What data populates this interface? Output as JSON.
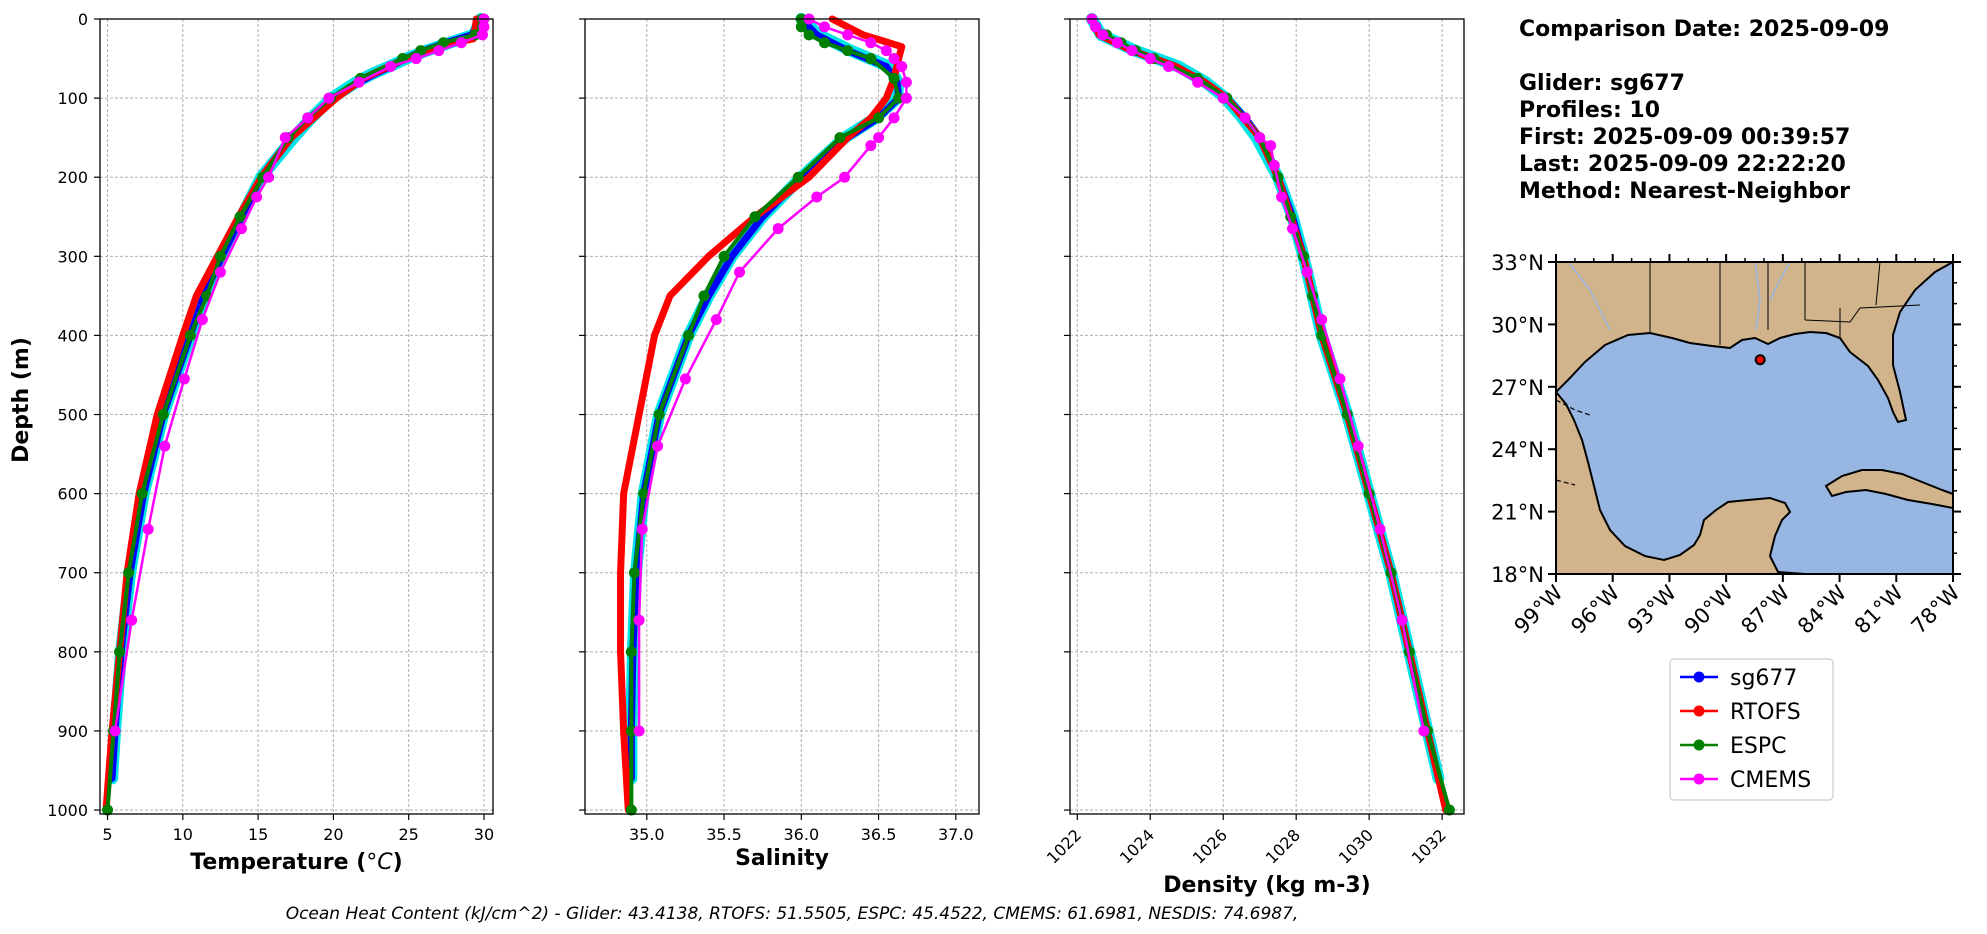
{
  "colors": {
    "glider": "#0000ff",
    "glider_raw": "#00e5e5",
    "rtofs": "#ff0000",
    "espc": "#008000",
    "cmems": "#ff00ff",
    "land": "#d2b48c",
    "ocean": "#98b6e2",
    "grid": "#b0b0b0"
  },
  "info": {
    "comparison_date": "Comparison Date: 2025-09-09",
    "glider": "Glider: sg677",
    "profiles": "Profiles: 10",
    "first": "First: 2025-09-09 00:39:57",
    "last": "Last: 2025-09-09 22:22:20",
    "method": "Method: Nearest-Neighbor"
  },
  "footer": "Ocean Heat Content (kJ/cm^2) - Glider: 43.4138,  RTOFS: 51.5505,  ESPC: 45.4522,  CMEMS: 61.6981,  NESDIS: 74.6987,",
  "legend": [
    {
      "label": "sg677",
      "color_key": "glider"
    },
    {
      "label": "RTOFS",
      "color_key": "rtofs"
    },
    {
      "label": "ESPC",
      "color_key": "espc"
    },
    {
      "label": "CMEMS",
      "color_key": "cmems"
    }
  ],
  "map": {
    "lat_ticks": [
      "33°N",
      "30°N",
      "27°N",
      "24°N",
      "21°N",
      "18°N"
    ],
    "lon_ticks": [
      "99°W",
      "96°W",
      "93°W",
      "90°W",
      "87°W",
      "84°W",
      "81°W",
      "78°W"
    ],
    "extent": {
      "lon": [
        -99,
        -78
      ],
      "lat": [
        18,
        33
      ]
    },
    "glider_position": {
      "lon": -88.2,
      "lat": 28.3
    }
  },
  "chart_data": [
    {
      "type": "line",
      "title": "",
      "xlabel": "Temperature (°C)",
      "ylabel": "Depth (m)",
      "xlim": [
        4.5,
        30.6
      ],
      "ylim": [
        1005,
        0
      ],
      "xticks": [
        5,
        10,
        15,
        20,
        25,
        30
      ],
      "yticks": [
        0,
        100,
        200,
        300,
        400,
        500,
        600,
        700,
        800,
        900,
        1000
      ],
      "grid": true,
      "series": [
        {
          "name": "sg677",
          "color_key": "glider",
          "markers": false,
          "depth": [
            0,
            20,
            30,
            40,
            50,
            60,
            70,
            80,
            100,
            125,
            150,
            200,
            250,
            300,
            350,
            400,
            500,
            600,
            700,
            800,
            900,
            960
          ],
          "values": [
            29.8,
            29.2,
            27.5,
            26.0,
            24.8,
            23.8,
            22.7,
            21.7,
            20.0,
            18.5,
            17.2,
            15.2,
            13.9,
            12.6,
            11.4,
            10.5,
            8.7,
            7.4,
            6.5,
            5.9,
            5.5,
            5.3
          ]
        },
        {
          "name": "RTOFS",
          "color_key": "rtofs",
          "markers": false,
          "depth": [
            0,
            25,
            30,
            40,
            50,
            75,
            100,
            150,
            200,
            250,
            300,
            350,
            400,
            500,
            600,
            700,
            800,
            900,
            1000
          ],
          "values": [
            29.5,
            29.3,
            28.0,
            26.3,
            24.8,
            22.0,
            20.2,
            17.2,
            15.2,
            13.7,
            12.3,
            10.9,
            10.0,
            8.3,
            7.1,
            6.3,
            5.8,
            5.3,
            4.9
          ]
        },
        {
          "name": "ESPC",
          "color_key": "espc",
          "markers": true,
          "depth": [
            0,
            10,
            20,
            30,
            40,
            50,
            75,
            100,
            125,
            150,
            200,
            250,
            300,
            350,
            400,
            500,
            600,
            700,
            800,
            900,
            1000
          ],
          "values": [
            29.9,
            29.9,
            29.4,
            27.3,
            25.8,
            24.6,
            21.8,
            19.8,
            18.3,
            17.0,
            15.3,
            13.8,
            12.5,
            11.6,
            10.5,
            8.7,
            7.3,
            6.4,
            5.8,
            5.4,
            5.0
          ]
        },
        {
          "name": "CMEMS",
          "color_key": "cmems",
          "markers": true,
          "depth": [
            0,
            10,
            20,
            30,
            40,
            50,
            60,
            80,
            100,
            125,
            150,
            200,
            225,
            265,
            320,
            380,
            455,
            540,
            645,
            760,
            900
          ],
          "values": [
            30.0,
            30.0,
            29.9,
            28.5,
            27.0,
            25.5,
            23.8,
            21.7,
            19.7,
            18.3,
            16.8,
            15.7,
            14.9,
            13.9,
            12.5,
            11.3,
            10.1,
            8.8,
            7.7,
            6.6,
            5.5
          ]
        }
      ]
    },
    {
      "type": "line",
      "title": "",
      "xlabel": "Salinity",
      "ylabel": "",
      "xlim": [
        34.6,
        37.15
      ],
      "ylim": [
        1005,
        0
      ],
      "xticks": [
        35.0,
        35.5,
        36.0,
        36.5,
        37.0
      ],
      "yticks": [
        0,
        100,
        200,
        300,
        400,
        500,
        600,
        700,
        800,
        900,
        1000
      ],
      "grid": true,
      "series": [
        {
          "name": "sg677",
          "color_key": "glider",
          "markers": false,
          "depth": [
            0,
            20,
            40,
            60,
            80,
            100,
            125,
            150,
            200,
            250,
            300,
            350,
            400,
            500,
            600,
            700,
            800,
            900,
            960
          ],
          "values": [
            36.0,
            36.1,
            36.3,
            36.55,
            36.62,
            36.63,
            36.5,
            36.3,
            36.0,
            35.75,
            35.55,
            35.4,
            35.27,
            35.08,
            34.98,
            34.93,
            34.91,
            34.9,
            34.9
          ]
        },
        {
          "name": "RTOFS",
          "color_key": "rtofs",
          "markers": false,
          "depth": [
            0,
            20,
            35,
            50,
            75,
            100,
            125,
            150,
            200,
            250,
            300,
            350,
            400,
            500,
            600,
            700,
            800,
            900,
            1000
          ],
          "values": [
            36.2,
            36.4,
            36.65,
            36.63,
            36.6,
            36.55,
            36.45,
            36.3,
            36.05,
            35.7,
            35.4,
            35.15,
            35.05,
            34.95,
            34.85,
            34.83,
            34.83,
            34.85,
            34.88
          ]
        },
        {
          "name": "ESPC",
          "color_key": "espc",
          "markers": true,
          "depth": [
            0,
            10,
            20,
            30,
            40,
            50,
            75,
            100,
            125,
            150,
            200,
            250,
            300,
            350,
            400,
            500,
            600,
            700,
            800,
            900,
            1000
          ],
          "values": [
            36.0,
            36.0,
            36.05,
            36.15,
            36.3,
            36.45,
            36.6,
            36.63,
            36.5,
            36.25,
            35.98,
            35.7,
            35.5,
            35.37,
            35.27,
            35.08,
            34.98,
            34.92,
            34.9,
            34.9,
            34.9
          ]
        },
        {
          "name": "CMEMS",
          "color_key": "cmems",
          "markers": true,
          "depth": [
            0,
            10,
            20,
            30,
            40,
            50,
            60,
            80,
            100,
            125,
            150,
            160,
            200,
            225,
            265,
            320,
            380,
            455,
            540,
            645,
            760,
            900
          ],
          "values": [
            36.05,
            36.15,
            36.3,
            36.45,
            36.55,
            36.6,
            36.65,
            36.68,
            36.68,
            36.6,
            36.5,
            36.45,
            36.28,
            36.1,
            35.85,
            35.6,
            35.45,
            35.25,
            35.07,
            34.97,
            34.95,
            34.95
          ]
        }
      ]
    },
    {
      "type": "line",
      "title": "",
      "xlabel": "Density (kg m-3)",
      "ylabel": "",
      "xlim": [
        1021.8,
        1032.6
      ],
      "ylim": [
        1005,
        0
      ],
      "xticks": [
        1022,
        1024,
        1026,
        1028,
        1030,
        1032
      ],
      "yticks": [
        0,
        100,
        200,
        300,
        400,
        500,
        600,
        700,
        800,
        900,
        1000
      ],
      "grid": true,
      "series": [
        {
          "name": "sg677",
          "color_key": "glider",
          "markers": false,
          "depth": [
            0,
            20,
            40,
            60,
            80,
            100,
            125,
            150,
            200,
            250,
            300,
            400,
            500,
            600,
            700,
            800,
            900,
            960
          ],
          "values": [
            1022.4,
            1022.6,
            1023.5,
            1024.7,
            1025.5,
            1026.1,
            1026.6,
            1027.0,
            1027.5,
            1027.9,
            1028.2,
            1028.7,
            1029.4,
            1030.0,
            1030.6,
            1031.1,
            1031.6,
            1031.9
          ]
        },
        {
          "name": "RTOFS",
          "color_key": "rtofs",
          "markers": false,
          "depth": [
            0,
            20,
            40,
            60,
            80,
            100,
            150,
            200,
            300,
            400,
            500,
            600,
            700,
            800,
            900,
            1000
          ],
          "values": [
            1022.4,
            1022.6,
            1023.5,
            1024.7,
            1025.5,
            1026.1,
            1027.0,
            1027.5,
            1028.2,
            1028.7,
            1029.4,
            1030.0,
            1030.6,
            1031.1,
            1031.6,
            1032.1
          ]
        },
        {
          "name": "ESPC",
          "color_key": "espc",
          "markers": true,
          "depth": [
            0,
            10,
            20,
            30,
            40,
            50,
            75,
            100,
            125,
            150,
            200,
            250,
            300,
            350,
            400,
            500,
            600,
            700,
            800,
            900,
            1000
          ],
          "values": [
            1022.4,
            1022.5,
            1022.8,
            1023.2,
            1023.6,
            1024.1,
            1025.3,
            1026.1,
            1026.6,
            1027.0,
            1027.5,
            1027.85,
            1028.2,
            1028.45,
            1028.7,
            1029.4,
            1030.0,
            1030.6,
            1031.1,
            1031.6,
            1032.2
          ]
        },
        {
          "name": "CMEMS",
          "color_key": "cmems",
          "markers": true,
          "depth": [
            0,
            10,
            20,
            30,
            40,
            50,
            60,
            80,
            100,
            125,
            150,
            160,
            185,
            225,
            265,
            320,
            380,
            455,
            540,
            645,
            760,
            900
          ],
          "values": [
            1022.4,
            1022.5,
            1022.7,
            1023.1,
            1023.5,
            1024.0,
            1024.5,
            1025.3,
            1026.0,
            1026.6,
            1027.0,
            1027.3,
            1027.4,
            1027.6,
            1027.9,
            1028.3,
            1028.7,
            1029.2,
            1029.7,
            1030.3,
            1030.9,
            1031.5
          ]
        }
      ]
    }
  ]
}
